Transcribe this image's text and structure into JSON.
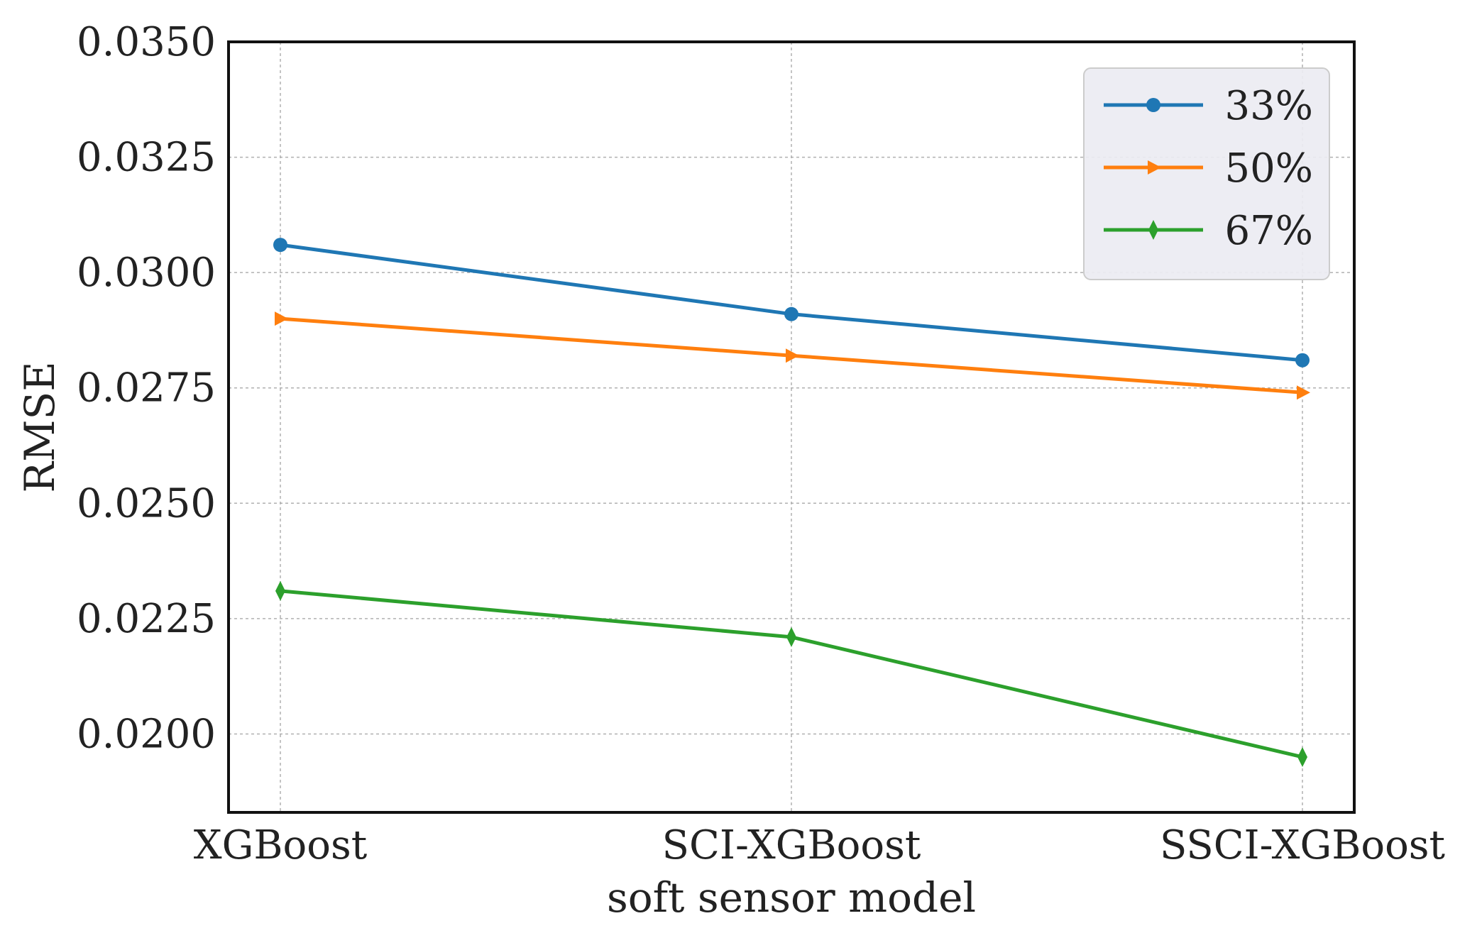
{
  "chart_data": {
    "type": "line",
    "title": "",
    "xlabel": "soft sensor model",
    "ylabel": "RMSE",
    "categories": [
      "XGBoost",
      "SCI-XGBoost",
      "SSCI-XGBoost"
    ],
    "ylim": [
      0.0183,
      0.035
    ],
    "yticks": [
      "0.0200",
      "0.0225",
      "0.0250",
      "0.0275",
      "0.0300",
      "0.0325",
      "0.0350"
    ],
    "ytick_values": [
      0.02,
      0.0225,
      0.025,
      0.0275,
      0.03,
      0.0325,
      0.035
    ],
    "grid": true,
    "legend_position": "top-right",
    "series": [
      {
        "name": "33%",
        "color": "#1f77b4",
        "marker": "circle",
        "values": [
          0.0306,
          0.0291,
          0.0281
        ]
      },
      {
        "name": "50%",
        "color": "#ff7f0e",
        "marker": "triangle-right",
        "values": [
          0.029,
          0.0282,
          0.0274
        ]
      },
      {
        "name": "67%",
        "color": "#2ca02c",
        "marker": "thin-diamond",
        "values": [
          0.0231,
          0.0221,
          0.0195
        ]
      }
    ]
  }
}
